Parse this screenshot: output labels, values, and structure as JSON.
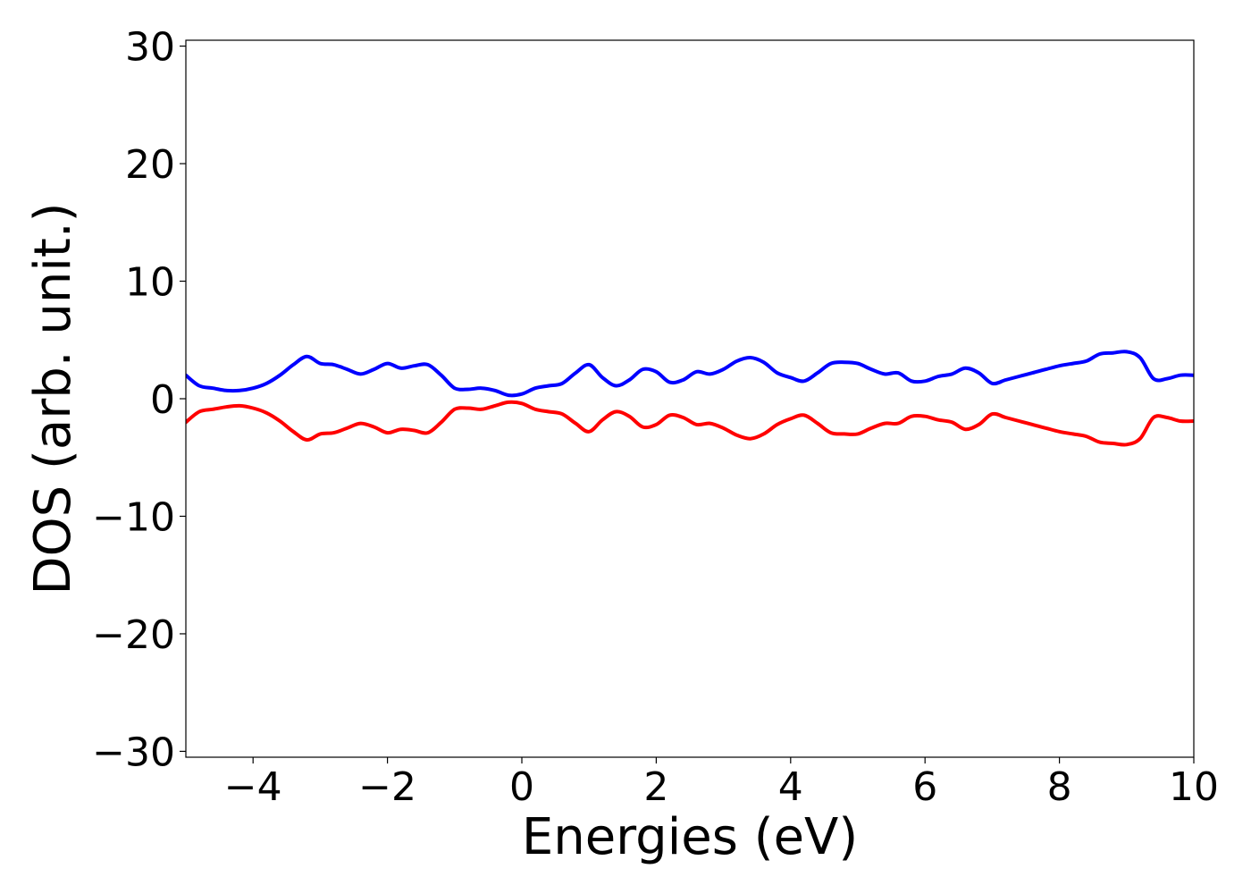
{
  "chart_data": {
    "type": "line",
    "xlabel": "Energies (eV)",
    "ylabel": "DOS (arb. unit.)",
    "xlim": [
      -5,
      10
    ],
    "ylim": [
      -30.5,
      30.5
    ],
    "xticks": [
      -4,
      -2,
      0,
      2,
      4,
      6,
      8,
      10
    ],
    "xtick_labels": [
      "−4",
      "−2",
      "0",
      "2",
      "4",
      "6",
      "8",
      "10"
    ],
    "yticks": [
      -30,
      -20,
      -10,
      0,
      10,
      20,
      30
    ],
    "ytick_labels": [
      "−30",
      "−20",
      "−10",
      "0",
      "10",
      "20",
      "30"
    ],
    "grid": false,
    "series": [
      {
        "color": "#0000ff",
        "x": [
          -5.0,
          -4.8,
          -4.6,
          -4.4,
          -4.2,
          -4.0,
          -3.8,
          -3.6,
          -3.4,
          -3.2,
          -3.0,
          -2.8,
          -2.6,
          -2.4,
          -2.2,
          -2.0,
          -1.8,
          -1.6,
          -1.4,
          -1.2,
          -1.0,
          -0.8,
          -0.6,
          -0.4,
          -0.2,
          0.0,
          0.2,
          0.4,
          0.6,
          0.8,
          1.0,
          1.2,
          1.4,
          1.6,
          1.8,
          2.0,
          2.2,
          2.4,
          2.6,
          2.8,
          3.0,
          3.2,
          3.4,
          3.6,
          3.8,
          4.0,
          4.2,
          4.4,
          4.6,
          4.8,
          5.0,
          5.2,
          5.4,
          5.6,
          5.8,
          6.0,
          6.2,
          6.4,
          6.6,
          6.8,
          7.0,
          7.2,
          7.4,
          7.6,
          7.8,
          8.0,
          8.2,
          8.4,
          8.6,
          8.8,
          9.0,
          9.2,
          9.4,
          9.6,
          9.8,
          10.0
        ],
        "y": [
          2.0,
          1.1,
          0.9,
          0.7,
          0.7,
          0.9,
          1.3,
          2.0,
          2.9,
          3.6,
          3.0,
          2.9,
          2.5,
          2.1,
          2.5,
          3.0,
          2.6,
          2.8,
          2.9,
          2.0,
          0.9,
          0.8,
          0.9,
          0.7,
          0.3,
          0.4,
          0.9,
          1.1,
          1.3,
          2.2,
          2.9,
          1.8,
          1.1,
          1.6,
          2.5,
          2.3,
          1.4,
          1.6,
          2.3,
          2.1,
          2.5,
          3.2,
          3.5,
          3.1,
          2.2,
          1.8,
          1.5,
          2.2,
          3.0,
          3.1,
          3.0,
          2.5,
          2.1,
          2.2,
          1.5,
          1.5,
          1.9,
          2.1,
          2.6,
          2.2,
          1.3,
          1.6,
          1.9,
          2.2,
          2.5,
          2.8,
          3.0,
          3.2,
          3.8,
          3.9,
          4.0,
          3.5,
          1.7,
          1.7,
          2.0,
          2.0
        ]
      },
      {
        "color": "#ff0000",
        "x": [
          -5.0,
          -4.8,
          -4.6,
          -4.4,
          -4.2,
          -4.0,
          -3.8,
          -3.6,
          -3.4,
          -3.2,
          -3.0,
          -2.8,
          -2.6,
          -2.4,
          -2.2,
          -2.0,
          -1.8,
          -1.6,
          -1.4,
          -1.2,
          -1.0,
          -0.8,
          -0.6,
          -0.4,
          -0.2,
          0.0,
          0.2,
          0.4,
          0.6,
          0.8,
          1.0,
          1.2,
          1.4,
          1.6,
          1.8,
          2.0,
          2.2,
          2.4,
          2.6,
          2.8,
          3.0,
          3.2,
          3.4,
          3.6,
          3.8,
          4.0,
          4.2,
          4.4,
          4.6,
          4.8,
          5.0,
          5.2,
          5.4,
          5.6,
          5.8,
          6.0,
          6.2,
          6.4,
          6.6,
          6.8,
          7.0,
          7.2,
          7.4,
          7.6,
          7.8,
          8.0,
          8.2,
          8.4,
          8.6,
          8.8,
          9.0,
          9.2,
          9.4,
          9.6,
          9.8,
          10.0
        ],
        "y": [
          -2.0,
          -1.1,
          -0.9,
          -0.7,
          -0.6,
          -0.8,
          -1.2,
          -1.9,
          -2.8,
          -3.5,
          -3.0,
          -2.9,
          -2.5,
          -2.1,
          -2.4,
          -2.9,
          -2.6,
          -2.7,
          -2.9,
          -2.0,
          -0.9,
          -0.8,
          -0.9,
          -0.6,
          -0.3,
          -0.4,
          -0.9,
          -1.1,
          -1.3,
          -2.1,
          -2.8,
          -1.8,
          -1.1,
          -1.5,
          -2.4,
          -2.2,
          -1.4,
          -1.6,
          -2.2,
          -2.1,
          -2.5,
          -3.1,
          -3.4,
          -3.0,
          -2.2,
          -1.7,
          -1.4,
          -2.1,
          -2.9,
          -3.0,
          -3.0,
          -2.5,
          -2.1,
          -2.1,
          -1.5,
          -1.5,
          -1.8,
          -2.0,
          -2.6,
          -2.2,
          -1.3,
          -1.6,
          -1.9,
          -2.2,
          -2.5,
          -2.8,
          -3.0,
          -3.2,
          -3.7,
          -3.8,
          -3.9,
          -3.4,
          -1.6,
          -1.6,
          -1.9,
          -1.9
        ]
      }
    ]
  }
}
